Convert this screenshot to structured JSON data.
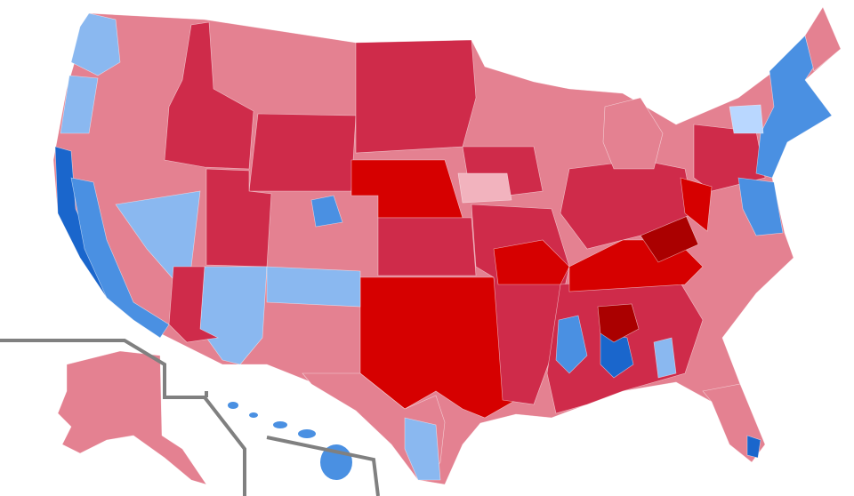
{
  "map": {
    "colors": {
      "light_red": "#e48191",
      "pale_red": "#f2b3be",
      "medium_red": "#cf2b4a",
      "bright_red": "#d60000",
      "dark_red": "#aa0000",
      "pale_blue": "#b9d7ff",
      "light_blue": "#8ab8f0",
      "medium_blue": "#4a90e2",
      "dark_blue": "#1a66cc",
      "inset_border": "#808080"
    }
  }
}
